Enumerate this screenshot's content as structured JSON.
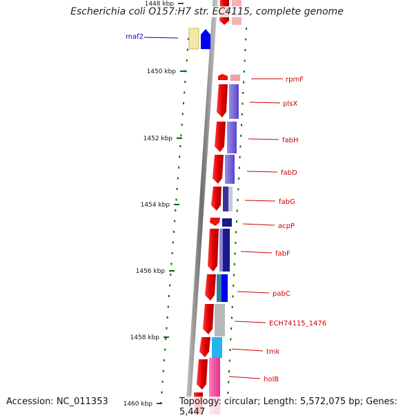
{
  "title": "Escherichia coli O157:H7 str. EC4115, complete genome",
  "accession": "Accession: NC_011353",
  "topology": "Topology: circular; Length: 5,572,075 bp; Genes: 5,447",
  "ruler": {
    "ticks": [
      "1448 kbp",
      "1450 kbp",
      "1452 kbp",
      "1454 kbp",
      "1456 kbp",
      "1458 kbp",
      "1460 kbp"
    ]
  },
  "genes": [
    {
      "label": "maf2",
      "color": "#0000cc"
    },
    {
      "label": "rpmF",
      "color": "#cc0000"
    },
    {
      "label": "plsX",
      "color": "#cc0000"
    },
    {
      "label": "fabH",
      "color": "#cc0000"
    },
    {
      "label": "fabD",
      "color": "#cc0000"
    },
    {
      "label": "fabG",
      "color": "#cc0000"
    },
    {
      "label": "acpP",
      "color": "#cc0000"
    },
    {
      "label": "fabF",
      "color": "#cc0000"
    },
    {
      "label": "pabC",
      "color": "#cc0000"
    },
    {
      "label": "ECH74115_1476",
      "color": "#cc0000"
    },
    {
      "label": "tmk",
      "color": "#cc0000"
    },
    {
      "label": "holB",
      "color": "#cc0000"
    }
  ],
  "colors": {
    "cds": "#ee0000",
    "tick": "#006400",
    "backbone": "#888888"
  }
}
